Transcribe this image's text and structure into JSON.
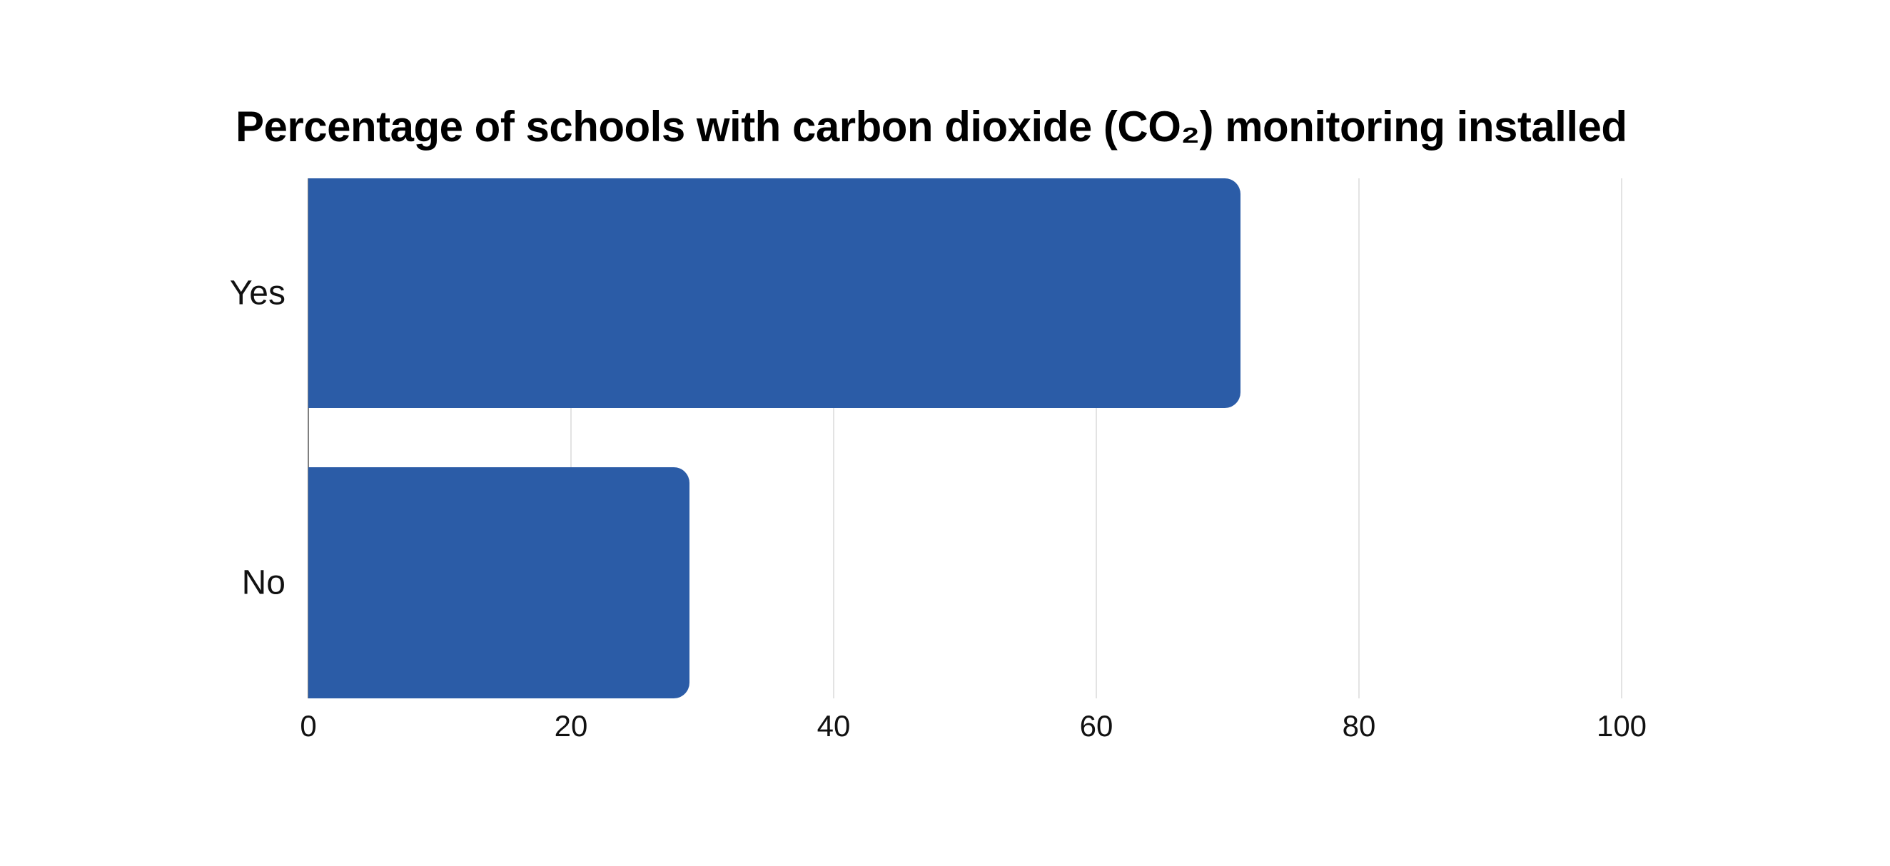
{
  "page": {
    "background": "#ffffff"
  },
  "chart_data": {
    "type": "bar",
    "orientation": "horizontal",
    "title": "Percentage of schools with carbon dioxide (CO₂) monitoring installed",
    "categories": [
      "Yes",
      "No"
    ],
    "values": [
      71,
      29
    ],
    "xlabel": "",
    "ylabel": "",
    "xlim": [
      0,
      100
    ],
    "x_ticks": [
      0,
      20,
      40,
      60,
      80,
      100
    ],
    "grid": "vertical-only",
    "legend": "none",
    "colors": {
      "bar": "#2b5ca7",
      "gridline": "#e3e3e3",
      "zero_line": "#7f7f7f",
      "title_text": "#000000",
      "label_text": "#111111",
      "background": "#ffffff"
    }
  }
}
